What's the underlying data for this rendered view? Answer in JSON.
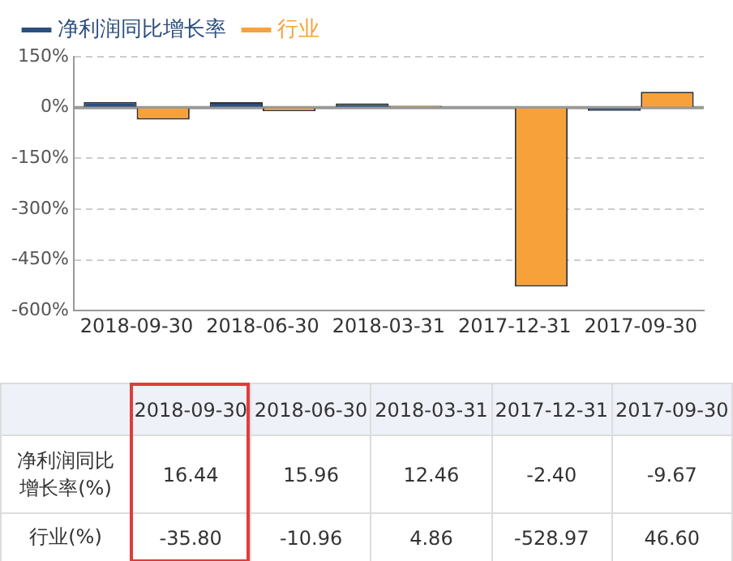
{
  "chart_data": {
    "type": "bar",
    "categories": [
      "2018-09-30",
      "2018-06-30",
      "2018-03-31",
      "2017-12-31",
      "2017-09-30"
    ],
    "series": [
      {
        "name": "净利润同比增长率",
        "color": "#2b4e7e",
        "values": [
          16.44,
          15.96,
          12.46,
          -2.4,
          -9.67
        ],
        "value_labels": [
          "16.44",
          "15.96",
          "12.46",
          "-2.40",
          "-9.67"
        ]
      },
      {
        "name": "行业",
        "color": "#f7a13a",
        "values": [
          -35.8,
          -10.96,
          4.86,
          -528.97,
          46.6
        ],
        "value_labels": [
          "-35.80",
          "-10.96",
          "4.86",
          "-528.97",
          "46.60"
        ]
      }
    ],
    "ylim": [
      -600,
      150
    ],
    "yticks": [
      {
        "value": 150,
        "label": "150%"
      },
      {
        "value": 0,
        "label": "0%"
      },
      {
        "value": -150,
        "label": "-150%"
      },
      {
        "value": -300,
        "label": "-300%"
      },
      {
        "value": -450,
        "label": "-450%"
      },
      {
        "value": -600,
        "label": "-600%"
      }
    ],
    "grid": "y",
    "legend": "top left",
    "ref_lines": [
      {
        "axis": "y",
        "value": 0,
        "color": "#999999"
      }
    ],
    "annotations": [
      "净利润同比增长率(%)",
      "行业(%)"
    ]
  }
}
